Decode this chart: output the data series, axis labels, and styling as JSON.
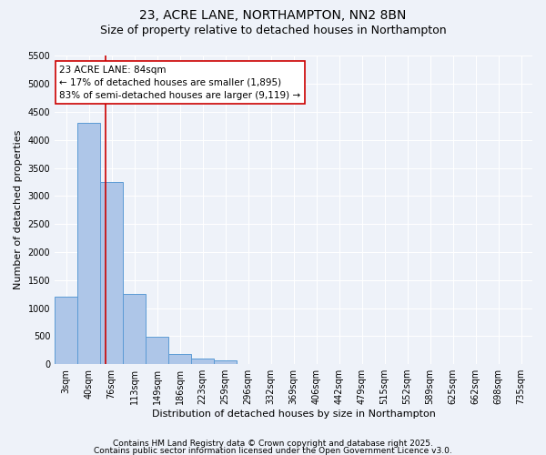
{
  "title1": "23, ACRE LANE, NORTHAMPTON, NN2 8BN",
  "title2": "Size of property relative to detached houses in Northampton",
  "xlabel": "Distribution of detached houses by size in Northampton",
  "ylabel": "Number of detached properties",
  "categories": [
    "3sqm",
    "40sqm",
    "76sqm",
    "113sqm",
    "149sqm",
    "186sqm",
    "223sqm",
    "259sqm",
    "296sqm",
    "332sqm",
    "369sqm",
    "406sqm",
    "442sqm",
    "479sqm",
    "515sqm",
    "552sqm",
    "589sqm",
    "625sqm",
    "662sqm",
    "698sqm",
    "735sqm"
  ],
  "values": [
    1200,
    4300,
    3250,
    1250,
    490,
    175,
    100,
    60,
    0,
    0,
    0,
    0,
    0,
    0,
    0,
    0,
    0,
    0,
    0,
    0,
    0
  ],
  "bar_color": "#aec6e8",
  "bar_edge_color": "#5b9bd5",
  "vline_color": "#cc0000",
  "annotation_text": "23 ACRE LANE: 84sqm\n← 17% of detached houses are smaller (1,895)\n83% of semi-detached houses are larger (9,119) →",
  "annotation_box_color": "#ffffff",
  "annotation_box_edge": "#cc0000",
  "ylim": [
    0,
    5500
  ],
  "yticks": [
    0,
    500,
    1000,
    1500,
    2000,
    2500,
    3000,
    3500,
    4000,
    4500,
    5000,
    5500
  ],
  "footer1": "Contains HM Land Registry data © Crown copyright and database right 2025.",
  "footer2": "Contains public sector information licensed under the Open Government Licence v3.0.",
  "bg_color": "#eef2f9",
  "grid_color": "#ffffff",
  "title_fontsize": 10,
  "subtitle_fontsize": 9,
  "axis_label_fontsize": 8,
  "tick_fontsize": 7,
  "footer_fontsize": 6.5,
  "annot_fontsize": 7.5
}
